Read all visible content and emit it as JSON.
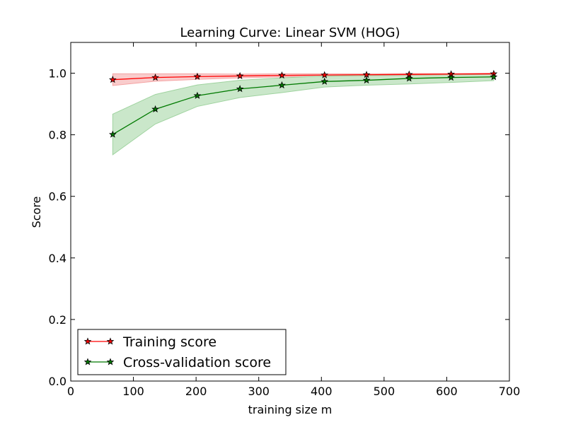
{
  "chart_data": {
    "type": "line",
    "title": "Learning Curve: Linear SVM (HOG)",
    "xlabel": "training size m",
    "ylabel": "Score",
    "xlim": [
      0,
      700
    ],
    "ylim": [
      0.0,
      1.1
    ],
    "xticks": [
      0,
      100,
      200,
      300,
      400,
      500,
      600,
      700
    ],
    "yticks": [
      0.0,
      0.2,
      0.4,
      0.6,
      0.8,
      1.0
    ],
    "xtick_labels": [
      "0",
      "100",
      "200",
      "300",
      "400",
      "500",
      "600",
      "700"
    ],
    "ytick_labels": [
      "0.0",
      "0.2",
      "0.4",
      "0.6",
      "0.8",
      "1.0"
    ],
    "grid": false,
    "legend_position": "bottom-left",
    "x": [
      67,
      135,
      202,
      270,
      337,
      405,
      472,
      540,
      607,
      675
    ],
    "series": [
      {
        "name": "Training score",
        "color": "#ff0000",
        "band_color": "#f4a3a3",
        "marker": "star",
        "values": [
          0.979,
          0.986,
          0.989,
          0.991,
          0.993,
          0.994,
          0.995,
          0.996,
          0.997,
          0.998
        ],
        "lower": [
          0.96,
          0.974,
          0.98,
          0.985,
          0.988,
          0.99,
          0.992,
          0.993,
          0.995,
          0.996
        ],
        "upper": [
          0.998,
          0.998,
          0.998,
          0.997,
          0.998,
          0.998,
          0.998,
          0.999,
          0.999,
          1.0
        ]
      },
      {
        "name": "Cross-validation score",
        "color": "#007a00",
        "band_color": "#9fd39f",
        "marker": "star",
        "values": [
          0.801,
          0.883,
          0.927,
          0.949,
          0.961,
          0.973,
          0.977,
          0.983,
          0.986,
          0.988
        ],
        "lower": [
          0.735,
          0.835,
          0.892,
          0.921,
          0.937,
          0.955,
          0.961,
          0.965,
          0.97,
          0.976
        ],
        "upper": [
          0.867,
          0.931,
          0.962,
          0.977,
          0.985,
          0.991,
          0.993,
          0.996,
          0.996,
          0.998
        ]
      }
    ]
  }
}
